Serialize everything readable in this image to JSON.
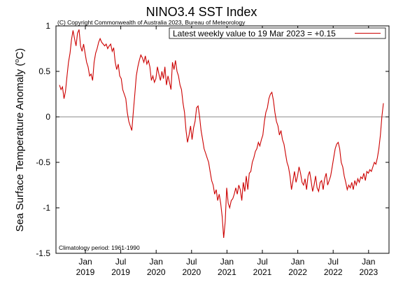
{
  "chart_data": {
    "type": "line",
    "title": "NINO3.4 SST Index",
    "subtitle": "(C) Copyright Commonwealth of Australia 2023, Bureau of Meteorology",
    "ylabel_main": "Sea Surface Temperature Anomaly (",
    "ylabel_sup": "o",
    "ylabel_end": "C)",
    "legend": "Latest weekly value to 19 Mar 2023 = +0.15",
    "note": "Climatology period: 1961-1990",
    "ylim": [
      -1.5,
      1
    ],
    "yticks": [
      "1",
      "0.5",
      "0",
      "-0.5",
      "-1",
      "-1.5"
    ],
    "xticks": [
      {
        "top": "Jan",
        "bottom": "2019"
      },
      {
        "top": "Jul",
        "bottom": "2019"
      },
      {
        "top": "Jan",
        "bottom": "2020"
      },
      {
        "top": "Jul",
        "bottom": "2020"
      },
      {
        "top": "Jan",
        "bottom": "2021"
      },
      {
        "top": "Jul",
        "bottom": "2021"
      },
      {
        "top": "Jan",
        "bottom": "2022"
      },
      {
        "top": "Jul",
        "bottom": "2022"
      },
      {
        "top": "Jan",
        "bottom": "2023"
      }
    ],
    "series_color": "#cc0000",
    "series": [
      {
        "values": [
          0.35,
          0.3,
          0.33,
          0.2,
          0.28,
          0.45,
          0.6,
          0.7,
          0.85,
          0.95,
          0.86,
          0.78,
          0.92,
          0.96,
          0.78,
          0.72,
          0.8,
          0.7,
          0.6,
          0.55,
          0.45,
          0.47,
          0.4,
          0.6,
          0.7,
          0.75,
          0.82,
          0.86,
          0.82,
          0.8,
          0.78,
          0.8,
          0.75,
          0.78,
          0.8,
          0.72,
          0.76,
          0.6,
          0.52,
          0.58,
          0.45,
          0.42,
          0.3,
          0.25,
          0.2,
          0.05,
          -0.05,
          -0.1,
          -0.15,
          0.05,
          0.25,
          0.45,
          0.55,
          0.62,
          0.68,
          0.65,
          0.6,
          0.67,
          0.58,
          0.62,
          0.55,
          0.4,
          0.45,
          0.38,
          0.42,
          0.55,
          0.47,
          0.4,
          0.5,
          0.42,
          0.55,
          0.35,
          0.45,
          0.38,
          0.3,
          0.6,
          0.52,
          0.62,
          0.5,
          0.45,
          0.35,
          0.3,
          0.15,
          0.05,
          -0.15,
          -0.28,
          -0.2,
          -0.1,
          -0.25,
          -0.12,
          -0.05,
          0.1,
          0.12,
          0.0,
          -0.15,
          -0.25,
          -0.35,
          -0.4,
          -0.45,
          -0.5,
          -0.6,
          -0.7,
          -0.75,
          -0.85,
          -0.8,
          -0.92,
          -0.85,
          -0.95,
          -1.1,
          -1.33,
          -1.15,
          -0.78,
          -0.95,
          -1.0,
          -0.92,
          -0.9,
          -0.85,
          -0.78,
          -0.85,
          -0.75,
          -0.8,
          -0.92,
          -0.72,
          -0.82,
          -0.65,
          -0.8,
          -0.62,
          -0.6,
          -0.5,
          -0.45,
          -0.38,
          -0.35,
          -0.28,
          -0.32,
          -0.25,
          -0.2,
          -0.05,
          0.05,
          0.1,
          0.2,
          0.25,
          0.27,
          0.18,
          0.05,
          -0.05,
          -0.1,
          -0.2,
          -0.15,
          -0.25,
          -0.3,
          -0.4,
          -0.5,
          -0.55,
          -0.65,
          -0.8,
          -0.7,
          -0.6,
          -0.72,
          -0.65,
          -0.55,
          -0.62,
          -0.72,
          -0.75,
          -0.68,
          -0.8,
          -0.65,
          -0.6,
          -0.7,
          -0.82,
          -0.75,
          -0.65,
          -0.78,
          -0.82,
          -0.72,
          -0.7,
          -0.8,
          -0.68,
          -0.62,
          -0.75,
          -0.7,
          -0.65,
          -0.55,
          -0.45,
          -0.35,
          -0.3,
          -0.28,
          -0.35,
          -0.5,
          -0.55,
          -0.65,
          -0.72,
          -0.8,
          -0.75,
          -0.78,
          -0.72,
          -0.8,
          -0.7,
          -0.75,
          -0.68,
          -0.72,
          -0.66,
          -0.68,
          -0.62,
          -0.7,
          -0.6,
          -0.62,
          -0.58,
          -0.6,
          -0.55,
          -0.5,
          -0.52,
          -0.45,
          -0.35,
          -0.2,
          0.0,
          0.15
        ]
      }
    ]
  }
}
